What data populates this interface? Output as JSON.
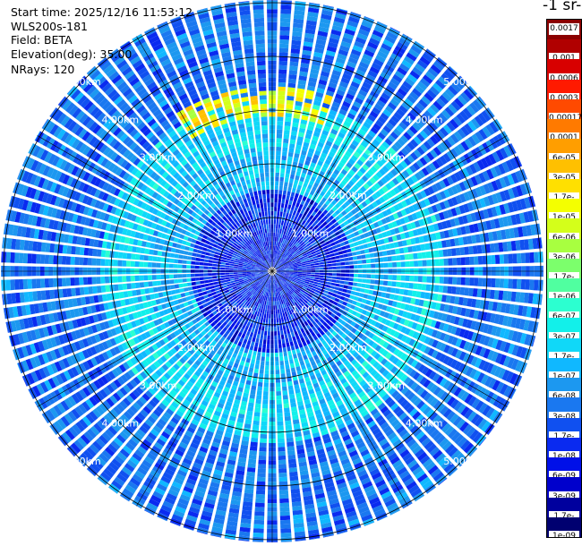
{
  "info": {
    "start_time": "Start time: 2025/12/16 11:53:12",
    "instrument": "WLS200s-181",
    "field": "Field: BETA",
    "elevation": "Elevation(deg): 35.00",
    "nrays": "NRays: 120"
  },
  "colorbar_unit": "-1 sr-",
  "colorbar_levels": [
    "0.0017",
    "0.001",
    "0.0006",
    "0.0003",
    "0.00017",
    "0.0001",
    "6e-05",
    "3e-05",
    "1.7e-05",
    "1e-05",
    "6e-06",
    "3e-06",
    "1.7e-06",
    "1e-06",
    "6e-07",
    "3e-07",
    "1.7e-07",
    "1e-07",
    "6e-08",
    "3e-08",
    "1.7e-08",
    "1e-08",
    "6e-09",
    "3e-09",
    "1.7e-09",
    "1e-09"
  ],
  "colorbar_colors": [
    "#8b0000",
    "#b00000",
    "#d80000",
    "#ff1a00",
    "#ff4a00",
    "#ff7a00",
    "#ff9e00",
    "#ffc000",
    "#ffe000",
    "#f4ff00",
    "#d4ff1a",
    "#a8ff40",
    "#7cff6c",
    "#50ffa0",
    "#2cffd0",
    "#12f0ea",
    "#10d8f8",
    "#10b8ff",
    "#1c98f0",
    "#1a78f0",
    "#1050f0",
    "#0a2af0",
    "#0010e8",
    "#0000cc",
    "#00009e",
    "#000070"
  ],
  "chart_data": {
    "type": "heatmap",
    "projection": "polar-ppi",
    "field": "BETA",
    "elevation_deg": 35.0,
    "n_rays": 120,
    "range_rings_km": [
      1.0,
      2.0,
      3.0,
      4.0,
      5.0
    ],
    "ring_labels": [
      "1.00km",
      "2.00km",
      "3.00km",
      "4.00km",
      "5.00km"
    ],
    "max_range_km": 5.0,
    "colorbar": "log",
    "colorbar_range": [
      1e-09,
      0.0017
    ],
    "dominant_value_by_range": [
      {
        "range_km": [
          0.0,
          1.5
        ],
        "value": 1e-08
      },
      {
        "range_km": [
          1.5,
          2.3
        ],
        "value": 1e-07
      },
      {
        "range_km": [
          2.3,
          3.2
        ],
        "value": 1.7e-07
      },
      {
        "range_km": [
          3.2,
          5.0
        ],
        "value": 3e-08
      }
    ],
    "features": [
      {
        "description_value": 1e-05,
        "range_km": [
          2.9,
          3.4
        ],
        "azimuth_deg": [
          330,
          20
        ]
      }
    ]
  }
}
